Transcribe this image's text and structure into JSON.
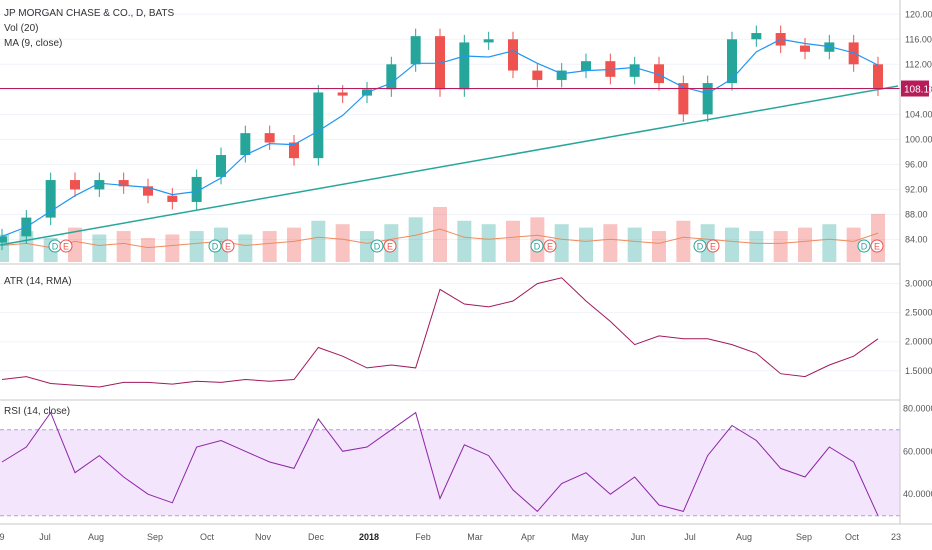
{
  "header": {
    "symbol_line": "JP MORGAN CHASE & CO., D, BATS",
    "volume_label": "Vol (20)",
    "ma_label": "MA (9, close)"
  },
  "last_price_label": "108.13",
  "atr_label": "ATR (14, RMA)",
  "rsi_label": "RSI (14, close)",
  "time_axis": [
    "9",
    "Jul",
    "Aug",
    "Sep",
    "Oct",
    "Nov",
    "Dec",
    "2018",
    "Feb",
    "Mar",
    "Apr",
    "May",
    "Jun",
    "Jul",
    "Aug",
    "Sep",
    "Oct",
    "23"
  ],
  "event_markers": [
    {
      "label": "D",
      "color": "#26a69a"
    },
    {
      "label": "E",
      "color": "#ef5350"
    },
    {
      "label": "D",
      "color": "#26a69a"
    },
    {
      "label": "E",
      "color": "#ef5350"
    },
    {
      "label": "D",
      "color": "#26a69a"
    },
    {
      "label": "E",
      "color": "#ef5350"
    },
    {
      "label": "D",
      "color": "#26a69a"
    },
    {
      "label": "E",
      "color": "#ef5350"
    },
    {
      "label": "D",
      "color": "#26a69a"
    },
    {
      "label": "E",
      "color": "#ef5350"
    },
    {
      "label": "D",
      "color": "#26a69a"
    },
    {
      "label": "E",
      "color": "#ef5350"
    }
  ],
  "colors": {
    "up": "#26a69a",
    "down": "#ef5350",
    "ma": "#2196f3",
    "trendline": "#26a69a",
    "price_line": "#b71c5a",
    "atr": "#a2185b",
    "rsi": "#8e24aa",
    "rsi_band": "#f3e5fb",
    "volume_ma": "#f08a5d"
  },
  "chart_data": [
    {
      "type": "candlestick",
      "title": "JP MORGAN CHASE & CO., D, BATS",
      "series": [
        {
          "name": "price",
          "x": [
            "2017-06-09",
            "2017-06-23",
            "2017-07-07",
            "2017-07-14",
            "2017-07-28",
            "2017-08-11",
            "2017-08-25",
            "2017-09-08",
            "2017-09-22",
            "2017-10-06",
            "2017-10-20",
            "2017-11-03",
            "2017-11-17",
            "2017-12-01",
            "2017-12-15",
            "2017-12-29",
            "2018-01-12",
            "2018-01-26",
            "2018-02-09",
            "2018-02-23",
            "2018-03-09",
            "2018-03-23",
            "2018-04-06",
            "2018-04-20",
            "2018-05-04",
            "2018-05-18",
            "2018-06-01",
            "2018-06-15",
            "2018-06-29",
            "2018-07-13",
            "2018-07-27",
            "2018-08-10",
            "2018-08-24",
            "2018-09-07",
            "2018-09-21",
            "2018-10-05",
            "2018-10-11"
          ],
          "close": [
            84.5,
            87.5,
            93.5,
            92.0,
            93.5,
            92.5,
            91.0,
            90.0,
            94.0,
            97.5,
            101.0,
            99.5,
            97.0,
            107.5,
            107.0,
            108.0,
            112.0,
            116.5,
            108.0,
            115.5,
            116.0,
            111.0,
            109.5,
            111.0,
            112.5,
            110.0,
            112.0,
            109.0,
            104.0,
            109.0,
            116.0,
            117.0,
            115.0,
            114.0,
            115.5,
            112.0,
            108.13
          ]
        }
      ],
      "ylim": [
        82,
        121
      ],
      "yticks": [
        "84.00",
        "88.00",
        "92.00",
        "96.00",
        "100.00",
        "104.00",
        "108.00",
        "112.00",
        "116.00",
        "120.00"
      ],
      "last": 108.13
    },
    {
      "type": "bar",
      "title": "Vol (20)",
      "series": [
        {
          "name": "volume",
          "values": [
            8,
            9,
            7,
            10,
            8,
            9,
            7,
            8,
            9,
            10,
            8,
            9,
            10,
            12,
            11,
            9,
            11,
            13,
            16,
            12,
            11,
            12,
            13,
            11,
            10,
            11,
            10,
            9,
            12,
            11,
            10,
            9,
            9,
            10,
            11,
            10,
            14
          ]
        }
      ]
    },
    {
      "type": "line",
      "title": "ATR (14, RMA)",
      "series": [
        {
          "name": "ATR",
          "values": [
            1.35,
            1.4,
            1.28,
            1.25,
            1.22,
            1.3,
            1.3,
            1.27,
            1.32,
            1.3,
            1.35,
            1.32,
            1.35,
            1.9,
            1.75,
            1.55,
            1.6,
            1.55,
            2.9,
            2.65,
            2.6,
            2.7,
            3.0,
            3.1,
            2.7,
            2.35,
            1.95,
            2.1,
            2.05,
            2.05,
            1.95,
            1.8,
            1.45,
            1.4,
            1.6,
            1.75,
            2.05
          ]
        }
      ],
      "ylim": [
        1.1,
        3.2
      ],
      "yticks": [
        "1.5000",
        "2.0000",
        "2.5000",
        "3.0000"
      ]
    },
    {
      "type": "line",
      "title": "RSI (14, close)",
      "series": [
        {
          "name": "RSI",
          "values": [
            55,
            62,
            78,
            50,
            58,
            48,
            40,
            36,
            62,
            65,
            60,
            55,
            52,
            75,
            60,
            62,
            70,
            78,
            38,
            63,
            58,
            42,
            32,
            45,
            50,
            40,
            48,
            35,
            32,
            58,
            72,
            65,
            52,
            48,
            62,
            55,
            30
          ]
        }
      ],
      "ylim": [
        28,
        82
      ],
      "band": [
        30,
        70
      ],
      "yticks": [
        "40.0000",
        "60.0000",
        "80.0000"
      ]
    }
  ]
}
